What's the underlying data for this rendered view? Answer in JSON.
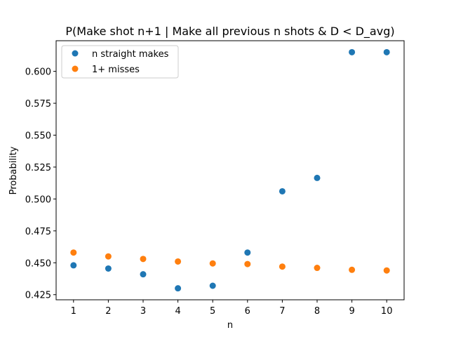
{
  "chart_data": {
    "type": "scatter",
    "title": "P(Make shot n+1 | Make all previous n shots & D < D_avg)",
    "xlabel": "n",
    "ylabel": "Probability",
    "x": [
      1,
      2,
      3,
      4,
      5,
      6,
      7,
      8,
      9,
      10
    ],
    "xlim": [
      0.5,
      10.5
    ],
    "ylim": [
      0.421,
      0.624
    ],
    "xticks": [
      1,
      2,
      3,
      4,
      5,
      6,
      7,
      8,
      9,
      10
    ],
    "yticks": [
      0.425,
      0.45,
      0.475,
      0.5,
      0.525,
      0.55,
      0.575,
      0.6
    ],
    "ytick_labels": [
      "0.425",
      "0.450",
      "0.475",
      "0.500",
      "0.525",
      "0.550",
      "0.575",
      "0.600"
    ],
    "grid": false,
    "legend_position": "upper-left",
    "series": [
      {
        "name": "n straight makes",
        "color": "#1f77b4",
        "values": [
          0.448,
          0.4455,
          0.441,
          0.43,
          0.432,
          0.458,
          0.506,
          0.5165,
          0.615,
          0.615
        ]
      },
      {
        "name": "1+ misses",
        "color": "#ff7f0e",
        "values": [
          0.458,
          0.455,
          0.453,
          0.451,
          0.4495,
          0.449,
          0.447,
          0.446,
          0.4445,
          0.444
        ]
      }
    ]
  }
}
